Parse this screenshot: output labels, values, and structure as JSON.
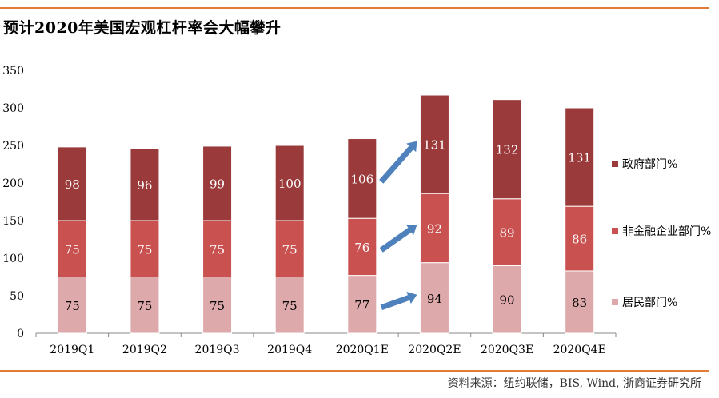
{
  "title": "预计2020年美国宏观杠杆率会大幅攀升",
  "source": "资料来源：纽约联储，BIS, Wind, 浙商证券研究所",
  "chart_data": {
    "type": "bar",
    "stacked": true,
    "categories": [
      "2019Q1",
      "2019Q2",
      "2019Q3",
      "2019Q4",
      "2020Q1E",
      "2020Q2E",
      "2020Q3E",
      "2020Q4E"
    ],
    "series": [
      {
        "name": "居民部门%",
        "values": [
          75,
          75,
          75,
          75,
          77,
          94,
          90,
          83
        ],
        "color": "#dea9ab"
      },
      {
        "name": "非金融企业部门%",
        "values": [
          75,
          75,
          75,
          75,
          76,
          92,
          89,
          86
        ],
        "color": "#c95250"
      },
      {
        "name": "政府部门%",
        "values": [
          98,
          96,
          99,
          100,
          106,
          131,
          132,
          131
        ],
        "color": "#9a3a3a"
      }
    ],
    "ylim": [
      0,
      350
    ],
    "yticks": [
      0,
      50,
      100,
      150,
      200,
      250,
      300,
      350
    ],
    "grid": false,
    "legend_position": "right",
    "annotations": "three blue arrows between 2020Q1E and 2020Q2E",
    "arrow_color": "#4f81bd"
  }
}
